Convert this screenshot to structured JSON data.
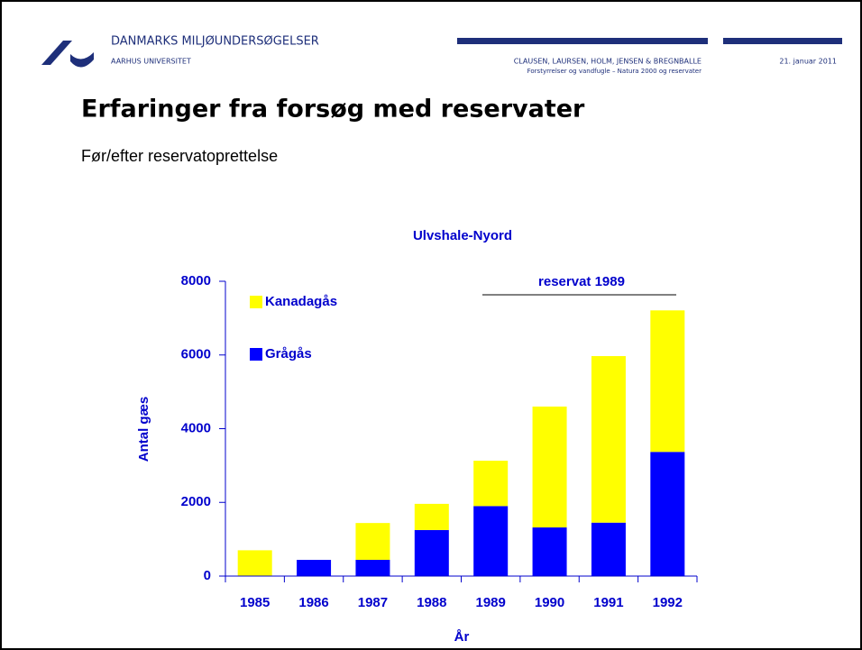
{
  "header": {
    "org": "DANMARKS MILJØUNDERSØGELSER",
    "university": "AARHUS UNIVERSITET",
    "authors": "CLAUSEN, LAURSEN, HOLM, JENSEN & BREGNBALLE",
    "talk": "Forstyrrelser og vandfugle – Natura 2000 og reservater",
    "date": "21. januar 2011"
  },
  "slide": {
    "title": "Erfaringer fra forsøg med reservater",
    "subtitle": "Før/efter reservatoprettelse"
  },
  "chart_data": {
    "type": "stacked_bar",
    "title": "Ulvshale-Nyord",
    "xlabel": "År",
    "ylabel": "Antal gæs",
    "annotation": "reservat 1989",
    "categories": [
      "1985",
      "1986",
      "1987",
      "1988",
      "1989",
      "1990",
      "1991",
      "1992"
    ],
    "series": [
      {
        "name": "Grågås",
        "color": "#0000ff",
        "values": [
          0,
          440,
          440,
          1250,
          1900,
          1320,
          1450,
          3370
        ]
      },
      {
        "name": "Kanadagås",
        "color": "#ffff00",
        "values": [
          700,
          0,
          1000,
          710,
          1230,
          3280,
          4520,
          3840
        ]
      }
    ],
    "ylim": [
      0,
      8000
    ],
    "yticks": [
      0,
      2000,
      4000,
      6000,
      8000
    ],
    "grid": false
  }
}
